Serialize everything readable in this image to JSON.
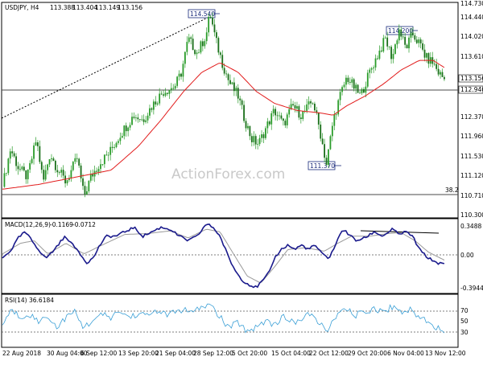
{
  "chart_data": [
    {
      "type": "candlestick",
      "title": "USDJPY, H4",
      "ohlc_header": [
        "113.388",
        "113.404",
        "113.149",
        "113.156"
      ],
      "watermark": "ActionForex.com",
      "y_ticks": [
        "114.730",
        "114.440",
        "114.020",
        "113.610",
        "113.156",
        "112.940",
        "112.370",
        "111.960",
        "111.530",
        "111.120",
        "110.710",
        "110.300"
      ],
      "ylim": [
        110.3,
        114.73
      ],
      "last_price": "113.156",
      "level_line": "112.940",
      "fib_label": "38.2",
      "fib_level": 110.76,
      "annotations": [
        {
          "label": "114.540",
          "value": 114.54
        },
        {
          "label": "114.200",
          "value": 114.2
        },
        {
          "label": "111.370",
          "value": 111.37
        }
      ],
      "trendline": {
        "from": [
          0,
          112.37
        ],
        "to": [
          0.458,
          114.54
        ]
      },
      "price_anchors": [
        [
          0,
          110.9
        ],
        [
          0.018,
          111.7
        ],
        [
          0.035,
          111.3
        ],
        [
          0.055,
          111.1
        ],
        [
          0.075,
          111.9
        ],
        [
          0.09,
          111.0
        ],
        [
          0.105,
          111.6
        ],
        [
          0.12,
          111.3
        ],
        [
          0.14,
          111.0
        ],
        [
          0.165,
          111.5
        ],
        [
          0.18,
          110.7
        ],
        [
          0.195,
          111.1
        ],
        [
          0.215,
          111.4
        ],
        [
          0.235,
          111.6
        ],
        [
          0.26,
          112.0
        ],
        [
          0.29,
          112.4
        ],
        [
          0.31,
          112.3
        ],
        [
          0.33,
          112.6
        ],
        [
          0.355,
          112.9
        ],
        [
          0.38,
          113.0
        ],
        [
          0.395,
          113.3
        ],
        [
          0.41,
          114.0
        ],
        [
          0.43,
          113.7
        ],
        [
          0.45,
          114.1
        ],
        [
          0.458,
          114.54
        ],
        [
          0.47,
          114.0
        ],
        [
          0.485,
          113.5
        ],
        [
          0.5,
          113.1
        ],
        [
          0.52,
          112.8
        ],
        [
          0.535,
          112.3
        ],
        [
          0.55,
          111.9
        ],
        [
          0.565,
          111.8
        ],
        [
          0.58,
          112.1
        ],
        [
          0.6,
          112.5
        ],
        [
          0.62,
          112.2
        ],
        [
          0.64,
          112.6
        ],
        [
          0.66,
          112.4
        ],
        [
          0.685,
          112.7
        ],
        [
          0.7,
          112.1
        ],
        [
          0.715,
          111.37
        ],
        [
          0.73,
          112.3
        ],
        [
          0.745,
          112.8
        ],
        [
          0.76,
          113.2
        ],
        [
          0.775,
          113.0
        ],
        [
          0.79,
          112.8
        ],
        [
          0.81,
          113.3
        ],
        [
          0.83,
          113.7
        ],
        [
          0.845,
          114.0
        ],
        [
          0.86,
          113.6
        ],
        [
          0.875,
          114.2
        ],
        [
          0.89,
          113.8
        ],
        [
          0.905,
          114.1
        ],
        [
          0.92,
          113.9
        ],
        [
          0.935,
          113.6
        ],
        [
          0.95,
          113.5
        ],
        [
          0.962,
          113.3
        ],
        [
          0.975,
          113.156
        ]
      ],
      "sma_anchors": [
        [
          0,
          110.85
        ],
        [
          0.08,
          110.95
        ],
        [
          0.16,
          111.1
        ],
        [
          0.24,
          111.25
        ],
        [
          0.3,
          111.75
        ],
        [
          0.35,
          112.3
        ],
        [
          0.4,
          112.9
        ],
        [
          0.44,
          113.3
        ],
        [
          0.48,
          113.5
        ],
        [
          0.52,
          113.3
        ],
        [
          0.56,
          112.9
        ],
        [
          0.6,
          112.65
        ],
        [
          0.65,
          112.5
        ],
        [
          0.7,
          112.45
        ],
        [
          0.73,
          112.4
        ],
        [
          0.76,
          112.6
        ],
        [
          0.8,
          112.8
        ],
        [
          0.84,
          113.05
        ],
        [
          0.88,
          113.35
        ],
        [
          0.92,
          113.55
        ],
        [
          0.95,
          113.55
        ],
        [
          0.975,
          113.4
        ]
      ],
      "colors": {
        "candle": "#2a9c2a",
        "sma": "#e21d1d",
        "trendline": "#000000",
        "level": "#4a4a4a"
      }
    },
    {
      "type": "line",
      "indicator": "MACD(12,26,9)",
      "header": [
        "MACD(12,26,9)",
        "-0.1169",
        "-0.0712"
      ],
      "y_ticks": [
        "0.3488",
        "0.00",
        "-0.3944"
      ],
      "ylim": [
        -0.42,
        0.38
      ],
      "macd_anchors": [
        [
          0,
          -0.05
        ],
        [
          0.02,
          0.05
        ],
        [
          0.035,
          0.18
        ],
        [
          0.05,
          0.25
        ],
        [
          0.065,
          0.15
        ],
        [
          0.08,
          0.05
        ],
        [
          0.095,
          -0.05
        ],
        [
          0.11,
          0.02
        ],
        [
          0.125,
          0.12
        ],
        [
          0.14,
          0.2
        ],
        [
          0.155,
          0.1
        ],
        [
          0.17,
          0.02
        ],
        [
          0.185,
          -0.1
        ],
        [
          0.2,
          -0.05
        ],
        [
          0.215,
          0.1
        ],
        [
          0.23,
          0.2
        ],
        [
          0.25,
          0.2
        ],
        [
          0.27,
          0.25
        ],
        [
          0.29,
          0.3
        ],
        [
          0.31,
          0.2
        ],
        [
          0.33,
          0.25
        ],
        [
          0.35,
          0.3
        ],
        [
          0.37,
          0.28
        ],
        [
          0.39,
          0.2
        ],
        [
          0.41,
          0.15
        ],
        [
          0.43,
          0.2
        ],
        [
          0.45,
          0.34
        ],
        [
          0.465,
          0.3
        ],
        [
          0.48,
          0.2
        ],
        [
          0.5,
          -0.05
        ],
        [
          0.515,
          -0.2
        ],
        [
          0.53,
          -0.3
        ],
        [
          0.545,
          -0.35
        ],
        [
          0.56,
          -0.38
        ],
        [
          0.575,
          -0.3
        ],
        [
          0.59,
          -0.2
        ],
        [
          0.6,
          -0.05
        ],
        [
          0.615,
          0.05
        ],
        [
          0.63,
          0.1
        ],
        [
          0.645,
          0.05
        ],
        [
          0.66,
          0.1
        ],
        [
          0.675,
          0.05
        ],
        [
          0.69,
          0.1
        ],
        [
          0.705,
          0.0
        ],
        [
          0.72,
          -0.05
        ],
        [
          0.735,
          0.1
        ],
        [
          0.75,
          0.28
        ],
        [
          0.765,
          0.22
        ],
        [
          0.78,
          0.15
        ],
        [
          0.8,
          0.18
        ],
        [
          0.82,
          0.25
        ],
        [
          0.84,
          0.2
        ],
        [
          0.86,
          0.28
        ],
        [
          0.875,
          0.22
        ],
        [
          0.89,
          0.25
        ],
        [
          0.905,
          0.2
        ],
        [
          0.92,
          0.05
        ],
        [
          0.94,
          -0.05
        ],
        [
          0.96,
          -0.1
        ],
        [
          0.975,
          -0.12
        ]
      ],
      "signal_anchors": [
        [
          0,
          0.0
        ],
        [
          0.04,
          0.12
        ],
        [
          0.07,
          0.15
        ],
        [
          0.1,
          0.0
        ],
        [
          0.14,
          0.12
        ],
        [
          0.18,
          0.0
        ],
        [
          0.22,
          0.1
        ],
        [
          0.27,
          0.22
        ],
        [
          0.32,
          0.23
        ],
        [
          0.37,
          0.26
        ],
        [
          0.41,
          0.18
        ],
        [
          0.45,
          0.28
        ],
        [
          0.48,
          0.25
        ],
        [
          0.51,
          0.0
        ],
        [
          0.54,
          -0.25
        ],
        [
          0.57,
          -0.33
        ],
        [
          0.6,
          -0.15
        ],
        [
          0.63,
          0.05
        ],
        [
          0.67,
          0.07
        ],
        [
          0.71,
          0.03
        ],
        [
          0.74,
          0.12
        ],
        [
          0.77,
          0.2
        ],
        [
          0.81,
          0.2
        ],
        [
          0.85,
          0.23
        ],
        [
          0.88,
          0.24
        ],
        [
          0.91,
          0.15
        ],
        [
          0.94,
          0.02
        ],
        [
          0.975,
          -0.07
        ]
      ],
      "divergence_line": {
        "from": [
          0.755,
          0.31
        ],
        "to": [
          0.965,
          0.27
        ]
      },
      "colors": {
        "macd": "#1a1a8c",
        "signal": "#9a9a9a",
        "divergence": "#000000"
      }
    },
    {
      "type": "line",
      "indicator": "RSI(14)",
      "header": [
        "RSI(14)",
        "36.6184"
      ],
      "y_ticks": [
        "70",
        "50",
        "30"
      ],
      "ylim": [
        15,
        85
      ],
      "levels": [
        70,
        30
      ],
      "rsi_anchors": [
        [
          0,
          45
        ],
        [
          0.02,
          65
        ],
        [
          0.04,
          55
        ],
        [
          0.06,
          60
        ],
        [
          0.08,
          48
        ],
        [
          0.1,
          58
        ],
        [
          0.12,
          40
        ],
        [
          0.14,
          55
        ],
        [
          0.16,
          62
        ],
        [
          0.18,
          40
        ],
        [
          0.2,
          52
        ],
        [
          0.22,
          58
        ],
        [
          0.24,
          55
        ],
        [
          0.26,
          63
        ],
        [
          0.28,
          55
        ],
        [
          0.3,
          60
        ],
        [
          0.32,
          57
        ],
        [
          0.34,
          65
        ],
        [
          0.36,
          58
        ],
        [
          0.38,
          62
        ],
        [
          0.4,
          66
        ],
        [
          0.42,
          60
        ],
        [
          0.44,
          70
        ],
        [
          0.46,
          72
        ],
        [
          0.48,
          55
        ],
        [
          0.5,
          40
        ],
        [
          0.52,
          48
        ],
        [
          0.54,
          35
        ],
        [
          0.56,
          42
        ],
        [
          0.58,
          50
        ],
        [
          0.6,
          45
        ],
        [
          0.62,
          55
        ],
        [
          0.64,
          48
        ],
        [
          0.66,
          52
        ],
        [
          0.68,
          60
        ],
        [
          0.7,
          45
        ],
        [
          0.72,
          38
        ],
        [
          0.74,
          60
        ],
        [
          0.76,
          65
        ],
        [
          0.78,
          58
        ],
        [
          0.8,
          62
        ],
        [
          0.82,
          68
        ],
        [
          0.84,
          62
        ],
        [
          0.86,
          70
        ],
        [
          0.88,
          63
        ],
        [
          0.9,
          65
        ],
        [
          0.92,
          55
        ],
        [
          0.94,
          50
        ],
        [
          0.96,
          40
        ],
        [
          0.975,
          37
        ]
      ],
      "colors": {
        "rsi": "#3a9fd6"
      }
    }
  ],
  "x_ticks": [
    "22 Aug 2018",
    "30 Aug 04:00",
    "6 Sep 12:00",
    "13 Sep 20:00",
    "21 Sep 04:00",
    "28 Sep 12:00",
    "5 Oct 20:00",
    "15 Oct 04:00",
    "22 Oct 12:00",
    "29 Oct 20:00",
    "6 Nov 04:00",
    "13 Nov 12:00"
  ]
}
